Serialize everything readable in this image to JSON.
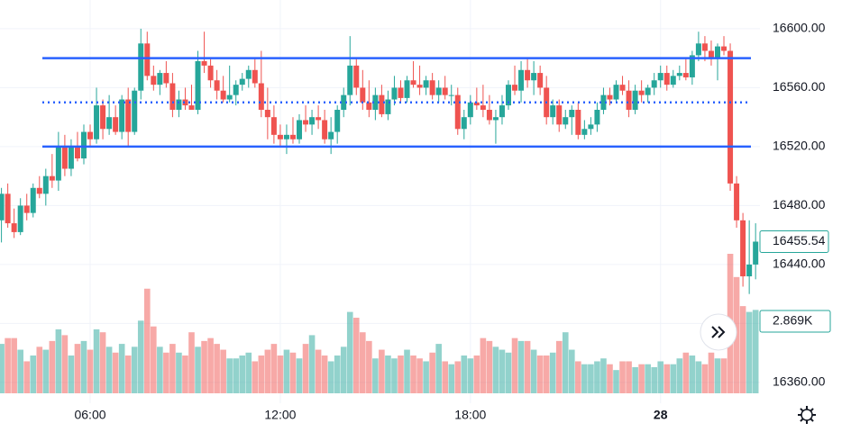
{
  "chart_data": {
    "type": "candlestick",
    "up_color": "#26a69a",
    "down_color": "#ef5350",
    "ylim": [
      16350.8,
      16619.5
    ],
    "yticks": [
      {
        "value": 16360,
        "label": "16360.00"
      },
      {
        "value": 16400,
        "label": "16400.00"
      },
      {
        "value": 16440,
        "label": "16440.00"
      },
      {
        "value": 16480,
        "label": "16480.00"
      },
      {
        "value": 16520,
        "label": "16520.00"
      },
      {
        "value": 16560,
        "label": "16560.00"
      },
      {
        "value": 16600,
        "label": "16600.00"
      }
    ],
    "xticks": [
      {
        "value": 14,
        "label": "06:00"
      },
      {
        "value": 44,
        "label": "12:00"
      },
      {
        "value": 74,
        "label": "18:00"
      },
      {
        "value": 104,
        "label": "28"
      }
    ],
    "grid": true,
    "hlines": [
      {
        "value": 16580,
        "style": "solid",
        "color": "#2962ff"
      },
      {
        "value": 16550,
        "style": "dotted",
        "color": "#2962ff"
      },
      {
        "value": 16520,
        "style": "solid",
        "color": "#2962ff"
      }
    ],
    "last_volume_label": "2.869K",
    "candles": [
      [
        16470,
        16492,
        16455,
        16488
      ],
      [
        16488,
        16495,
        16465,
        16468
      ],
      [
        16468,
        16478,
        16458,
        16462
      ],
      [
        16462,
        16485,
        16460,
        16480
      ],
      [
        16480,
        16488,
        16470,
        16475
      ],
      [
        16475,
        16495,
        16472,
        16492
      ],
      [
        16492,
        16500,
        16485,
        16488
      ],
      [
        16488,
        16505,
        16480,
        16500
      ],
      [
        16500,
        16515,
        16492,
        16497
      ],
      [
        16497,
        16530,
        16490,
        16520
      ],
      [
        16520,
        16528,
        16500,
        16505
      ],
      [
        16505,
        16525,
        16500,
        16520
      ],
      [
        16520,
        16530,
        16510,
        16512
      ],
      [
        16512,
        16535,
        16508,
        16530
      ],
      [
        16530,
        16535,
        16520,
        16525
      ],
      [
        16525,
        16560,
        16522,
        16548
      ],
      [
        16548,
        16552,
        16525,
        16532
      ],
      [
        16532,
        16555,
        16528,
        16540
      ],
      [
        16540,
        16548,
        16528,
        16530
      ],
      [
        16530,
        16555,
        16525,
        16552
      ],
      [
        16552,
        16560,
        16520,
        16530
      ],
      [
        16530,
        16560,
        16528,
        16558
      ],
      [
        16558,
        16600,
        16552,
        16590
      ],
      [
        16590,
        16598,
        16565,
        16568
      ],
      [
        16568,
        16575,
        16558,
        16562
      ],
      [
        16562,
        16572,
        16555,
        16570
      ],
      [
        16570,
        16578,
        16560,
        16563
      ],
      [
        16563,
        16570,
        16540,
        16545
      ],
      [
        16545,
        16558,
        16540,
        16552
      ],
      [
        16552,
        16560,
        16545,
        16548
      ],
      [
        16548,
        16562,
        16545,
        16545
      ],
      [
        16545,
        16585,
        16542,
        16578
      ],
      [
        16578,
        16598,
        16570,
        16575
      ],
      [
        16575,
        16580,
        16560,
        16565
      ],
      [
        16565,
        16572,
        16552,
        16558
      ],
      [
        16558,
        16568,
        16550,
        16552
      ],
      [
        16552,
        16575,
        16550,
        16555
      ],
      [
        16555,
        16565,
        16548,
        16562
      ],
      [
        16562,
        16570,
        16558,
        16566
      ],
      [
        16566,
        16575,
        16560,
        16572
      ],
      [
        16572,
        16580,
        16560,
        16563
      ],
      [
        16563,
        16585,
        16540,
        16545
      ],
      [
        16545,
        16560,
        16525,
        16540
      ],
      [
        16540,
        16548,
        16522,
        16528
      ],
      [
        16528,
        16535,
        16520,
        16525
      ],
      [
        16525,
        16535,
        16515,
        16528
      ],
      [
        16528,
        16540,
        16522,
        16525
      ],
      [
        16525,
        16542,
        16522,
        16538
      ],
      [
        16538,
        16548,
        16530,
        16535
      ],
      [
        16535,
        16545,
        16528,
        16540
      ],
      [
        16540,
        16548,
        16532,
        16538
      ],
      [
        16538,
        16545,
        16522,
        16525
      ],
      [
        16525,
        16540,
        16515,
        16530
      ],
      [
        16530,
        16548,
        16522,
        16545
      ],
      [
        16545,
        16560,
        16540,
        16555
      ],
      [
        16555,
        16595,
        16548,
        16575
      ],
      [
        16575,
        16580,
        16555,
        16560
      ],
      [
        16560,
        16572,
        16545,
        16550
      ],
      [
        16550,
        16565,
        16540,
        16545
      ],
      [
        16545,
        16560,
        16538,
        16555
      ],
      [
        16555,
        16562,
        16540,
        16542
      ],
      [
        16542,
        16558,
        16538,
        16552
      ],
      [
        16552,
        16568,
        16548,
        16560
      ],
      [
        16560,
        16565,
        16550,
        16553
      ],
      [
        16553,
        16568,
        16550,
        16565
      ],
      [
        16565,
        16578,
        16560,
        16562
      ],
      [
        16562,
        16575,
        16555,
        16560
      ],
      [
        16560,
        16568,
        16555,
        16565
      ],
      [
        16565,
        16570,
        16552,
        16555
      ],
      [
        16555,
        16565,
        16550,
        16560
      ],
      [
        16560,
        16568,
        16552,
        16555
      ],
      [
        16555,
        16562,
        16548,
        16555
      ],
      [
        16555,
        16560,
        16528,
        16532
      ],
      [
        16532,
        16545,
        16525,
        16540
      ],
      [
        16540,
        16555,
        16535,
        16550
      ],
      [
        16550,
        16560,
        16545,
        16548
      ],
      [
        16548,
        16562,
        16540,
        16545
      ],
      [
        16545,
        16555,
        16535,
        16538
      ],
      [
        16538,
        16545,
        16522,
        16540
      ],
      [
        16540,
        16555,
        16535,
        16548
      ],
      [
        16548,
        16565,
        16545,
        16562
      ],
      [
        16562,
        16575,
        16555,
        16558
      ],
      [
        16558,
        16578,
        16550,
        16572
      ],
      [
        16572,
        16580,
        16560,
        16565
      ],
      [
        16565,
        16578,
        16555,
        16570
      ],
      [
        16570,
        16575,
        16555,
        16560
      ],
      [
        16560,
        16568,
        16535,
        16540
      ],
      [
        16540,
        16552,
        16535,
        16548
      ],
      [
        16548,
        16552,
        16530,
        16535
      ],
      [
        16535,
        16545,
        16532,
        16540
      ],
      [
        16540,
        16548,
        16528,
        16545
      ],
      [
        16545,
        16550,
        16525,
        16528
      ],
      [
        16528,
        16538,
        16525,
        16532
      ],
      [
        16532,
        16540,
        16528,
        16535
      ],
      [
        16535,
        16550,
        16530,
        16545
      ],
      [
        16545,
        16560,
        16542,
        16555
      ],
      [
        16555,
        16560,
        16548,
        16552
      ],
      [
        16552,
        16565,
        16550,
        16562
      ],
      [
        16562,
        16568,
        16555,
        16558
      ],
      [
        16558,
        16565,
        16540,
        16545
      ],
      [
        16545,
        16562,
        16542,
        16558
      ],
      [
        16558,
        16565,
        16550,
        16555
      ],
      [
        16555,
        16562,
        16550,
        16560
      ],
      [
        16560,
        16570,
        16555,
        16565
      ],
      [
        16565,
        16575,
        16560,
        16570
      ],
      [
        16570,
        16575,
        16558,
        16562
      ],
      [
        16562,
        16572,
        16560,
        16568
      ],
      [
        16568,
        16575,
        16565,
        16570
      ],
      [
        16570,
        16580,
        16565,
        16567
      ],
      [
        16567,
        16585,
        16562,
        16582
      ],
      [
        16582,
        16598,
        16578,
        16590
      ],
      [
        16590,
        16595,
        16578,
        16585
      ],
      [
        16585,
        16592,
        16575,
        16580
      ],
      [
        16580,
        16590,
        16565,
        16588
      ],
      [
        16588,
        16595,
        16582,
        16585
      ],
      [
        16585,
        16590,
        16490,
        16495
      ],
      [
        16495,
        16500,
        16465,
        16470
      ],
      [
        16470,
        16475,
        16425,
        16432
      ],
      [
        16432,
        16470,
        16420,
        16440
      ],
      [
        16440,
        16468,
        16430,
        16455.54
      ]
    ],
    "volume": [
      1700,
      1900,
      1900,
      1500,
      1100,
      1300,
      1600,
      1500,
      1800,
      2200,
      2000,
      1300,
      1700,
      1800,
      1500,
      2200,
      2100,
      1600,
      1400,
      1700,
      1300,
      1600,
      2500,
      3600,
      2300,
      1600,
      1400,
      1700,
      1400,
      1300,
      2100,
      1600,
      1800,
      1900,
      1700,
      1500,
      1200,
      1200,
      1300,
      1400,
      1100,
      1300,
      1500,
      1700,
      1300,
      1500,
      1400,
      1200,
      1700,
      2000,
      1500,
      1300,
      1100,
      1300,
      1600,
      2800,
      2600,
      2100,
      1800,
      1200,
      1500,
      1300,
      1200,
      1300,
      1500,
      1300,
      1200,
      1100,
      1400,
      1700,
      1100,
      1000,
      1100,
      1300,
      1200,
      1300,
      1900,
      1800,
      1600,
      1500,
      1400,
      1900,
      1800,
      1800,
      1500,
      1300,
      1300,
      1400,
      1800,
      2100,
      1500,
      1100,
      1000,
      1000,
      1100,
      1200,
      1000,
      800,
      1100,
      1100,
      900,
      1000,
      1000,
      900,
      1100,
      1000,
      1000,
      1200,
      1400,
      1300,
      1100,
      1000,
      1400,
      1200,
      1200,
      4800,
      4000,
      3000,
      2800,
      2869
    ]
  }
}
